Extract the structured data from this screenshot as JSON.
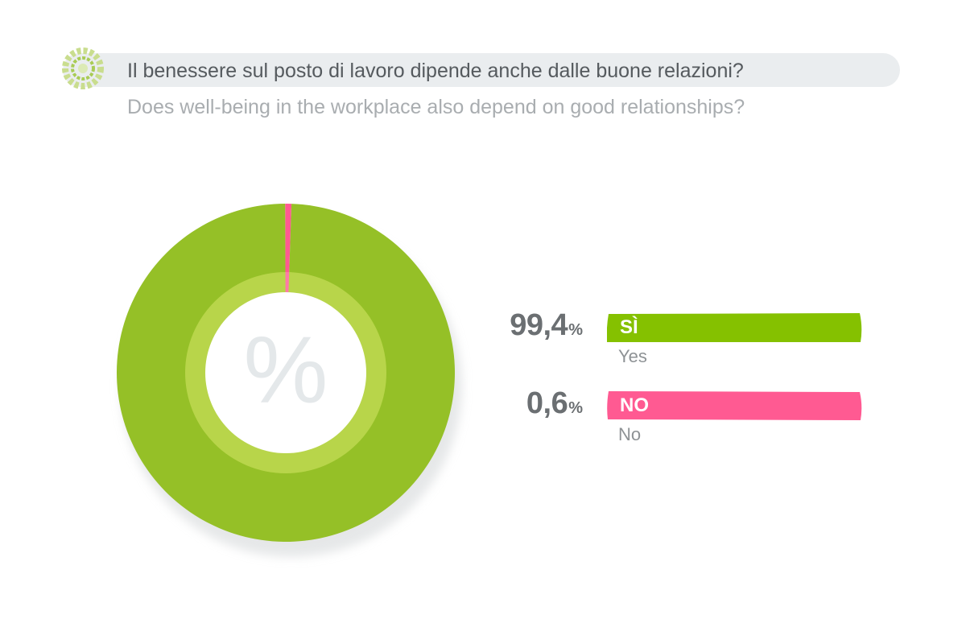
{
  "header": {
    "question_it": "Il benessere sul posto di lavoro dipende anche dalle buone relazioni?",
    "question_en": "Does well-being in the workplace also depend on good relationships?",
    "logo_icon": "gear-icon"
  },
  "center_symbol": "%",
  "colors": {
    "yes_donut": "#95c027",
    "yes_bar": "#85c100",
    "no": "#ff5a92",
    "inner_ring": "#b8d54a",
    "header_bg": "#eaedef"
  },
  "chart_data": {
    "type": "pie",
    "categories": [
      "SÌ",
      "NO"
    ],
    "values": [
      99.4,
      0.6
    ],
    "value_labels": [
      "99,4",
      "0,6"
    ],
    "percent_sign": "%",
    "sublabels": [
      "Yes",
      "No"
    ]
  }
}
